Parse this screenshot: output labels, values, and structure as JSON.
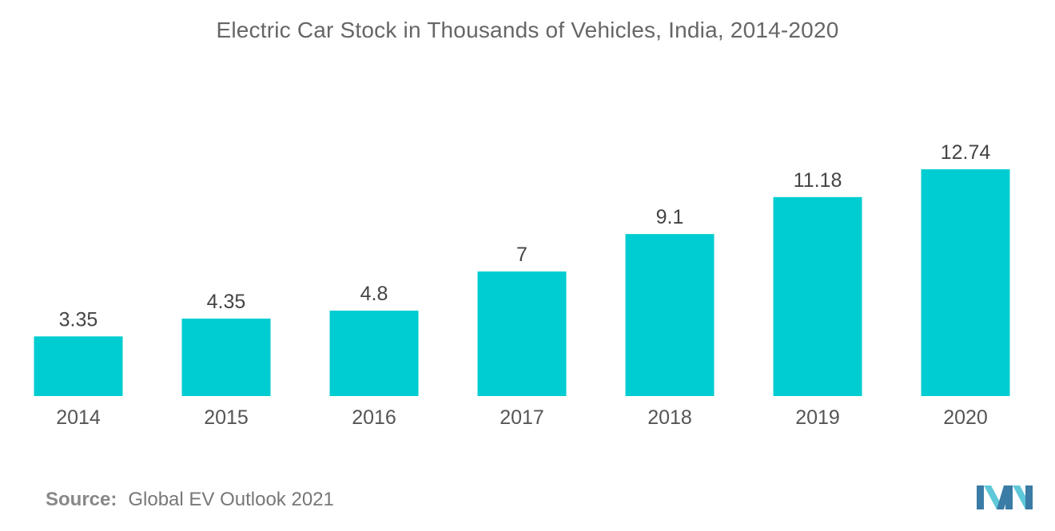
{
  "chart_data": {
    "type": "bar",
    "title": "Electric Car Stock in Thousands of Vehicles, India, 2014-2020",
    "categories": [
      "2014",
      "2015",
      "2016",
      "2017",
      "2018",
      "2019",
      "2020"
    ],
    "values": [
      3.35,
      4.35,
      4.8,
      7,
      9.1,
      11.18,
      12.74
    ],
    "value_labels": [
      "3.35",
      "4.35",
      "4.8",
      "7",
      "9.1",
      "11.18",
      "12.74"
    ],
    "xlabel": "",
    "ylabel": "",
    "ylim": [
      0,
      12.74
    ],
    "grid": false,
    "legend": "none",
    "bar_color": "#00cdd1"
  },
  "source": {
    "key": "Source:",
    "value": "Global EV Outlook 2021"
  },
  "colors": {
    "bar": "#00cdd1",
    "logo_dark": "#3a7ca5",
    "logo_light": "#5ec8d8"
  }
}
